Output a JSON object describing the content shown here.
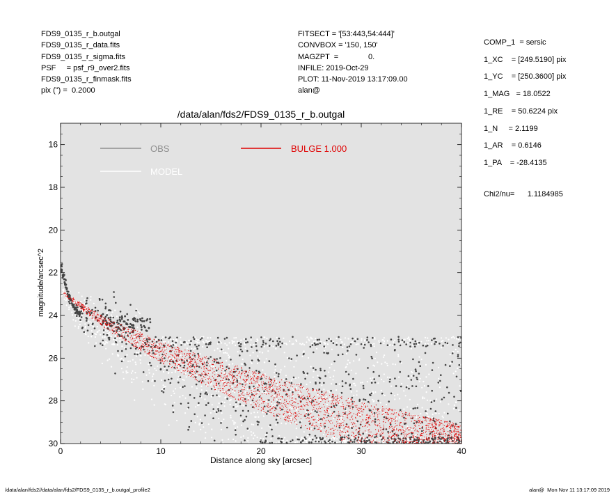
{
  "header_left": [
    "FDS9_0135_r_b.outgal",
    "FDS9_0135_r_data.fits",
    "FDS9_0135_r_sigma.fits",
    "PSF     = psf_r9_over2.fits",
    "FDS9_0135_r_finmask.fits",
    "pix (\") =  0.2000"
  ],
  "header_mid": [
    "FITSECT = '[53:443,54:444]'",
    "CONVBOX = '150, 150'",
    "MAGZPT  =              0.",
    "INFILE: 2019-Oct-29",
    "PLOT: 11-Nov-2019 13:17:09.00",
    "alan@"
  ],
  "header_right": [
    "COMP_1  = sersic",
    "1_XC    = [249.5190] pix",
    "1_YC    = [250.3600] pix",
    "1_MAG   = 18.0522",
    "1_RE    = 50.6224 pix",
    "1_N     = 2.1199",
    "1_AR    = 0.6146",
    "1_PA    = -28.4135"
  ],
  "chi2": {
    "label": "Chi2/nu=",
    "value": "1.1184985"
  },
  "footer": {
    "left": "/data/alan/fds2//data/alan/fds2/FDS9_0135_r_b.outgal_profile2",
    "right": "alan@  Mon Nov 11 13:17:09 2019"
  },
  "colors": {
    "background": "#e3e3e3",
    "obs": "#444444",
    "obs_legend": "#8f8f8f",
    "model": "#ffffff",
    "bulge": "#e00000"
  },
  "chart_data": {
    "type": "scatter",
    "title": "/data/alan/fds2/FDS9_0135_r_b.outgal",
    "xlabel": "Distance along sky [arcsec]",
    "ylabel": "magnitude/arcsec^2",
    "xlim": [
      0,
      40
    ],
    "ylim": [
      30,
      15
    ],
    "y_inverted": true,
    "xticks": [
      0,
      10,
      20,
      30,
      40
    ],
    "yticks": [
      16,
      18,
      20,
      22,
      24,
      26,
      28,
      30
    ],
    "legend": [
      {
        "name": "OBS",
        "color": "#8f8f8f"
      },
      {
        "name": "MODEL",
        "color": "#ffffff"
      },
      {
        "name": "BULGE  1.000",
        "color": "#e00000"
      }
    ],
    "series": [
      {
        "name": "OBS",
        "note_scatter_band": true,
        "x": [
          0.1,
          0.3,
          0.5,
          0.7,
          1.0,
          1.3,
          1.6,
          2.0,
          3.0,
          4.0,
          5.0,
          6.0,
          8.0,
          10.0,
          15.0,
          20.0,
          25.0,
          30.0,
          35.0,
          40.0
        ],
        "y": [
          21.8,
          22.2,
          22.6,
          22.9,
          23.3,
          23.6,
          23.8,
          24.0,
          24.2,
          24.4,
          24.6,
          24.8,
          25.3,
          25.8,
          26.6,
          27.3,
          27.9,
          28.4,
          28.9,
          29.3
        ]
      },
      {
        "name": "MODEL",
        "x": [
          0.3,
          0.5,
          1.0,
          2.0,
          3.0,
          5.0,
          7.0,
          10.0,
          15.0,
          20.0,
          25.0,
          30.0,
          35.0,
          40.0
        ],
        "y": [
          23.0,
          23.1,
          23.4,
          23.9,
          24.3,
          24.9,
          25.4,
          26.0,
          26.8,
          27.5,
          28.1,
          28.6,
          29.1,
          29.6
        ]
      },
      {
        "name": "BULGE  1.000",
        "band_upper_x": [
          0.3,
          1.0,
          2.0,
          3.0,
          5.0,
          7.0,
          10.0,
          15.0,
          20.0,
          25.0,
          30.0,
          35.0,
          40.0
        ],
        "band_upper_y": [
          22.9,
          23.1,
          23.4,
          23.7,
          24.2,
          24.6,
          25.2,
          26.0,
          26.7,
          27.4,
          28.0,
          28.6,
          29.1
        ],
        "band_lower_x": [
          0.3,
          1.0,
          2.0,
          3.0,
          5.0,
          7.0,
          10.0,
          15.0,
          20.0,
          25.0,
          28.0,
          30.0,
          35.0,
          40.0
        ],
        "band_lower_y": [
          23.0,
          23.3,
          23.7,
          24.1,
          24.8,
          25.4,
          26.2,
          27.4,
          28.5,
          29.4,
          29.9,
          30.0,
          30.0,
          30.0
        ]
      }
    ]
  }
}
